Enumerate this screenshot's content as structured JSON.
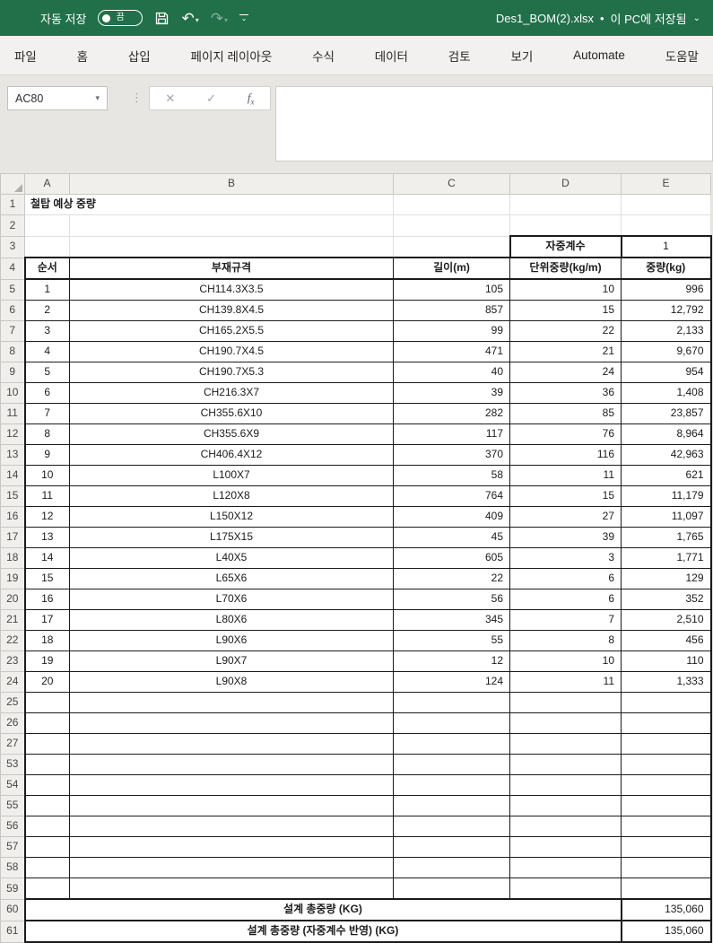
{
  "titlebar": {
    "autosave_label": "자동 저장",
    "autosave_state": "끔",
    "filename": "Des1_BOM(2).xlsx",
    "status_separator": "•",
    "file_status": "이 PC에 저장됨"
  },
  "icons": {
    "undo": "↶",
    "redo": "↷",
    "caret_down": "▾",
    "chevron_down": "⌄",
    "cancel": "✕",
    "enter": "✓",
    "ellipsis_vertical": "⋮",
    "name_box_dropdown": "▾"
  },
  "ribbon": {
    "tabs": [
      {
        "label": "파일",
        "slug": "file"
      },
      {
        "label": "홈",
        "slug": "home"
      },
      {
        "label": "삽입",
        "slug": "insert"
      },
      {
        "label": "페이지 레이아웃",
        "slug": "page-layout"
      },
      {
        "label": "수식",
        "slug": "formulas"
      },
      {
        "label": "데이터",
        "slug": "data"
      },
      {
        "label": "검토",
        "slug": "review"
      },
      {
        "label": "보기",
        "slug": "view"
      },
      {
        "label": "Automate",
        "slug": "automate"
      },
      {
        "label": "도움말",
        "slug": "help"
      }
    ]
  },
  "formula_bar": {
    "name_box_value": "AC80",
    "fx_label": "f",
    "fx_sub": "x",
    "formula_value": ""
  },
  "sheet": {
    "column_letters": [
      "A",
      "B",
      "C",
      "D",
      "E"
    ],
    "title_cell": {
      "row": 1,
      "text": "철탑 예상 중량"
    },
    "factor": {
      "row": 3,
      "label": "자중계수",
      "value": "1"
    },
    "header_row": {
      "row": 4,
      "cells": [
        "순서",
        "부재규격",
        "길이(m)",
        "단위중량(kg/m)",
        "중량(kg)"
      ]
    },
    "data_rows": [
      {
        "row": 5,
        "no": "1",
        "spec": "CH114.3X3.5",
        "length": "105",
        "unit_weight": "10",
        "weight": "996"
      },
      {
        "row": 6,
        "no": "2",
        "spec": "CH139.8X4.5",
        "length": "857",
        "unit_weight": "15",
        "weight": "12,792"
      },
      {
        "row": 7,
        "no": "3",
        "spec": "CH165.2X5.5",
        "length": "99",
        "unit_weight": "22",
        "weight": "2,133"
      },
      {
        "row": 8,
        "no": "4",
        "spec": "CH190.7X4.5",
        "length": "471",
        "unit_weight": "21",
        "weight": "9,670"
      },
      {
        "row": 9,
        "no": "5",
        "spec": "CH190.7X5.3",
        "length": "40",
        "unit_weight": "24",
        "weight": "954"
      },
      {
        "row": 10,
        "no": "6",
        "spec": "CH216.3X7",
        "length": "39",
        "unit_weight": "36",
        "weight": "1,408"
      },
      {
        "row": 11,
        "no": "7",
        "spec": "CH355.6X10",
        "length": "282",
        "unit_weight": "85",
        "weight": "23,857"
      },
      {
        "row": 12,
        "no": "8",
        "spec": "CH355.6X9",
        "length": "117",
        "unit_weight": "76",
        "weight": "8,964"
      },
      {
        "row": 13,
        "no": "9",
        "spec": "CH406.4X12",
        "length": "370",
        "unit_weight": "116",
        "weight": "42,963"
      },
      {
        "row": 14,
        "no": "10",
        "spec": "L100X7",
        "length": "58",
        "unit_weight": "11",
        "weight": "621"
      },
      {
        "row": 15,
        "no": "11",
        "spec": "L120X8",
        "length": "764",
        "unit_weight": "15",
        "weight": "11,179"
      },
      {
        "row": 16,
        "no": "12",
        "spec": "L150X12",
        "length": "409",
        "unit_weight": "27",
        "weight": "11,097"
      },
      {
        "row": 17,
        "no": "13",
        "spec": "L175X15",
        "length": "45",
        "unit_weight": "39",
        "weight": "1,765"
      },
      {
        "row": 18,
        "no": "14",
        "spec": "L40X5",
        "length": "605",
        "unit_weight": "3",
        "weight": "1,771"
      },
      {
        "row": 19,
        "no": "15",
        "spec": "L65X6",
        "length": "22",
        "unit_weight": "6",
        "weight": "129"
      },
      {
        "row": 20,
        "no": "16",
        "spec": "L70X6",
        "length": "56",
        "unit_weight": "6",
        "weight": "352"
      },
      {
        "row": 21,
        "no": "17",
        "spec": "L80X6",
        "length": "345",
        "unit_weight": "7",
        "weight": "2,510"
      },
      {
        "row": 22,
        "no": "18",
        "spec": "L90X6",
        "length": "55",
        "unit_weight": "8",
        "weight": "456"
      },
      {
        "row": 23,
        "no": "19",
        "spec": "L90X7",
        "length": "12",
        "unit_weight": "10",
        "weight": "110"
      },
      {
        "row": 24,
        "no": "20",
        "spec": "L90X8",
        "length": "124",
        "unit_weight": "11",
        "weight": "1,333"
      }
    ],
    "empty_rows": [
      25,
      26,
      27,
      53,
      54,
      55,
      56,
      57,
      58,
      59
    ],
    "totals": [
      {
        "row": 60,
        "label": "설계 총중량 (KG)",
        "value": "135,060"
      },
      {
        "row": 61,
        "label": "설계 총중량 (자중계수 반영) (KG)",
        "value": "135,060"
      }
    ]
  },
  "colors": {
    "titlebar_green": "#21704a",
    "ribbon_bg": "#f3f1ef",
    "chrome_bg": "#e8e6e3",
    "gutter_bg": "#f1efec",
    "table_border": "#1b1b1b"
  }
}
